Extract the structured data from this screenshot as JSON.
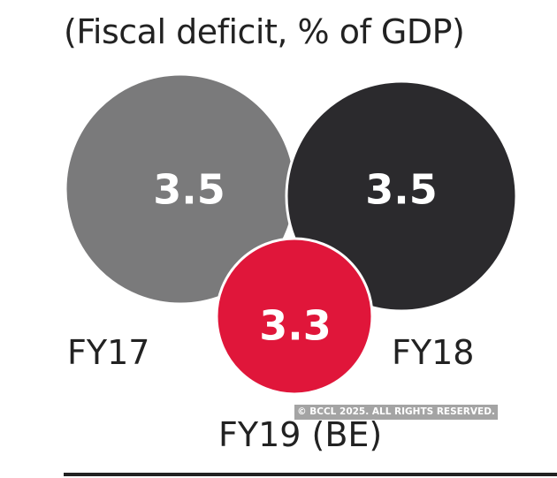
{
  "chart_data": {
    "type": "bubble",
    "title": "(Fiscal deficit, % of GDP)",
    "categories": [
      "FY17",
      "FY18",
      "FY19 (BE)"
    ],
    "values": [
      3.5,
      3.5,
      3.3
    ],
    "colors": [
      "#7a7a7b",
      "#2b2a2d",
      "#e0163a"
    ]
  },
  "watermark": "© BCCL 2025. ALL RIGHTS RESERVED."
}
